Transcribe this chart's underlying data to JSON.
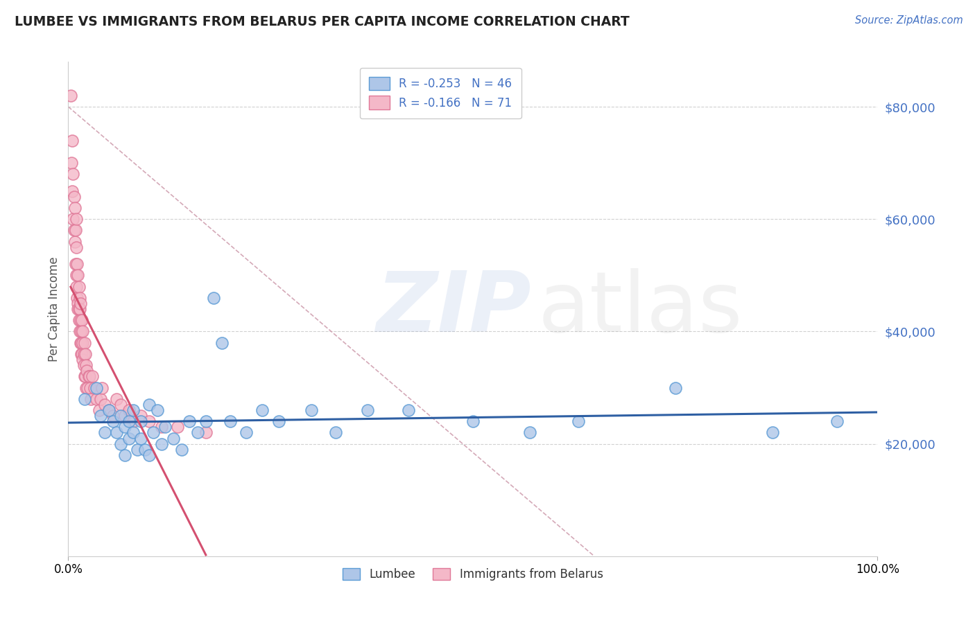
{
  "title": "LUMBEE VS IMMIGRANTS FROM BELARUS PER CAPITA INCOME CORRELATION CHART",
  "source": "Source: ZipAtlas.com",
  "ylabel": "Per Capita Income",
  "xlim": [
    0,
    1.0
  ],
  "ylim": [
    0,
    88000
  ],
  "yticks": [
    20000,
    40000,
    60000,
    80000
  ],
  "ytick_labels": [
    "$20,000",
    "$40,000",
    "$60,000",
    "$80,000"
  ],
  "xticks": [
    0.0,
    1.0
  ],
  "xtick_labels": [
    "0.0%",
    "100.0%"
  ],
  "background_color": "#ffffff",
  "grid_color": "#cccccc",
  "lumbee_color": "#aec6e8",
  "lumbee_edge_color": "#5b9bd5",
  "belarus_color": "#f4b8c8",
  "belarus_edge_color": "#e07898",
  "lumbee_line_color": "#2e5fa3",
  "belarus_line_color": "#d45070",
  "ref_line_color": "#d0a0b0",
  "lumbee_x": [
    0.02,
    0.035,
    0.04,
    0.045,
    0.05,
    0.055,
    0.06,
    0.065,
    0.065,
    0.07,
    0.07,
    0.075,
    0.075,
    0.08,
    0.08,
    0.085,
    0.09,
    0.09,
    0.095,
    0.1,
    0.1,
    0.105,
    0.11,
    0.115,
    0.12,
    0.13,
    0.14,
    0.15,
    0.16,
    0.17,
    0.18,
    0.19,
    0.2,
    0.22,
    0.24,
    0.26,
    0.3,
    0.33,
    0.37,
    0.42,
    0.5,
    0.57,
    0.63,
    0.75,
    0.87,
    0.95
  ],
  "lumbee_y": [
    28000,
    30000,
    25000,
    22000,
    26000,
    24000,
    22000,
    20000,
    25000,
    23000,
    18000,
    24000,
    21000,
    26000,
    22000,
    19000,
    24000,
    21000,
    19000,
    27000,
    18000,
    22000,
    26000,
    20000,
    23000,
    21000,
    19000,
    24000,
    22000,
    24000,
    46000,
    38000,
    24000,
    22000,
    26000,
    24000,
    26000,
    22000,
    26000,
    26000,
    24000,
    22000,
    24000,
    30000,
    22000,
    24000
  ],
  "belarus_x": [
    0.003,
    0.004,
    0.005,
    0.005,
    0.006,
    0.006,
    0.007,
    0.007,
    0.008,
    0.008,
    0.009,
    0.009,
    0.01,
    0.01,
    0.01,
    0.01,
    0.011,
    0.011,
    0.012,
    0.012,
    0.012,
    0.013,
    0.013,
    0.013,
    0.014,
    0.014,
    0.014,
    0.015,
    0.015,
    0.015,
    0.016,
    0.016,
    0.016,
    0.017,
    0.017,
    0.018,
    0.018,
    0.018,
    0.019,
    0.019,
    0.02,
    0.02,
    0.021,
    0.021,
    0.022,
    0.022,
    0.023,
    0.024,
    0.025,
    0.026,
    0.027,
    0.028,
    0.03,
    0.032,
    0.035,
    0.038,
    0.04,
    0.042,
    0.045,
    0.05,
    0.055,
    0.06,
    0.065,
    0.07,
    0.075,
    0.08,
    0.09,
    0.1,
    0.115,
    0.135,
    0.17
  ],
  "belarus_y": [
    82000,
    70000,
    74000,
    65000,
    68000,
    60000,
    64000,
    58000,
    62000,
    56000,
    58000,
    52000,
    55000,
    50000,
    48000,
    60000,
    52000,
    46000,
    50000,
    45000,
    44000,
    48000,
    44000,
    42000,
    46000,
    40000,
    44000,
    42000,
    38000,
    45000,
    40000,
    38000,
    36000,
    42000,
    36000,
    40000,
    35000,
    38000,
    34000,
    36000,
    38000,
    32000,
    36000,
    32000,
    34000,
    30000,
    33000,
    30000,
    32000,
    32000,
    30000,
    28000,
    32000,
    30000,
    28000,
    26000,
    28000,
    30000,
    27000,
    26000,
    25000,
    28000,
    27000,
    25000,
    26000,
    24000,
    25000,
    24000,
    23000,
    23000,
    22000
  ]
}
